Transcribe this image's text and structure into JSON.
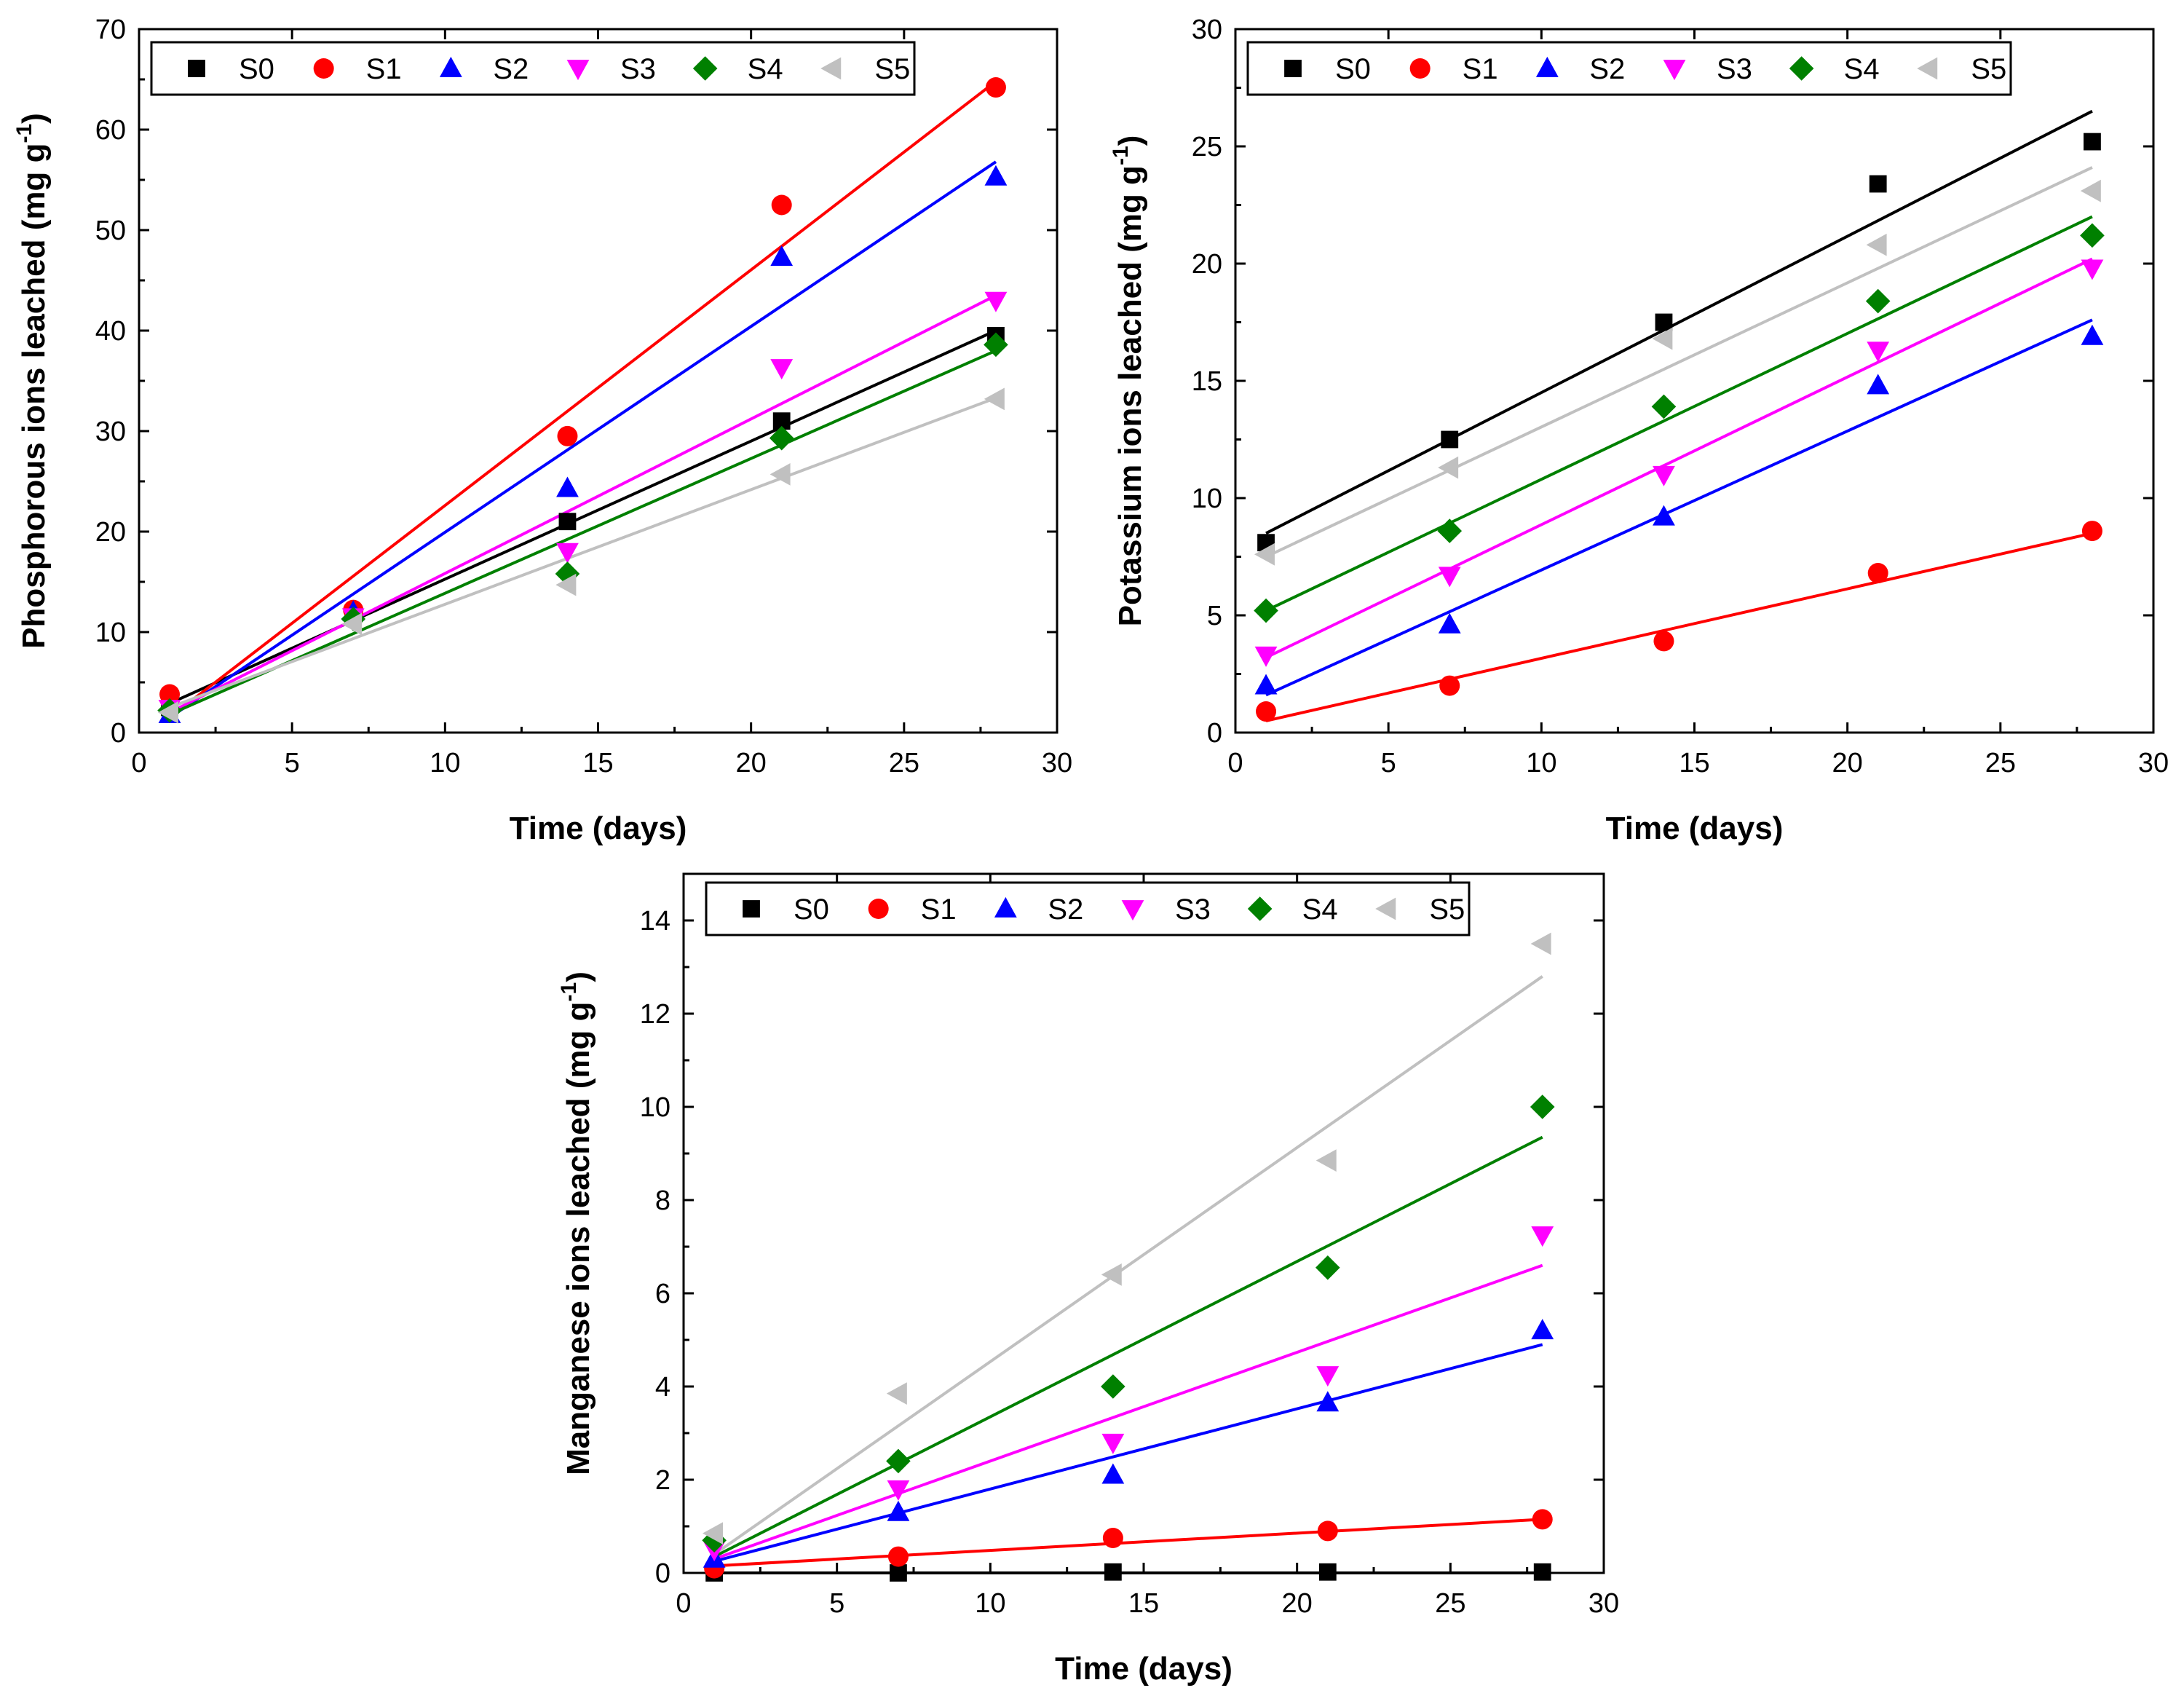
{
  "chart_data": [
    {
      "type": "scatter",
      "title": "",
      "xlabel": "Time (days)",
      "ylabel": "Phosphorous ions leached (mg g",
      "ylabel_sup": "-1",
      "ylabel_end": ")",
      "xlim": [
        0,
        30
      ],
      "ylim": [
        0,
        70
      ],
      "xticks": [
        0,
        5,
        10,
        15,
        20,
        25,
        30
      ],
      "yticks": [
        0,
        10,
        20,
        30,
        40,
        50,
        60,
        70
      ],
      "x": [
        1,
        7,
        14,
        21,
        28
      ],
      "fit": "linear",
      "legend_position": "top",
      "series": [
        {
          "name": "S0",
          "marker": "square",
          "color": "#000000",
          "values": [
            2.5,
            11.8,
            21.0,
            31.0,
            39.5
          ],
          "fit_y": [
            2.9,
            40.0
          ]
        },
        {
          "name": "S1",
          "marker": "circle",
          "color": "#ff0000",
          "values": [
            3.8,
            12.2,
            29.5,
            52.5,
            64.2
          ],
          "fit_y": [
            1.5,
            64.8
          ]
        },
        {
          "name": "S2",
          "marker": "triangle-up",
          "color": "#0000ff",
          "values": [
            1.8,
            12.0,
            24.3,
            47.3,
            55.3
          ],
          "fit_y": [
            1.5,
            56.8
          ]
        },
        {
          "name": "S3",
          "marker": "triangle-down",
          "color": "#ff00ff",
          "values": [
            2.4,
            11.5,
            18.0,
            36.3,
            43.0
          ],
          "fit_y": [
            2.0,
            43.5
          ]
        },
        {
          "name": "S4",
          "marker": "diamond",
          "color": "#008000",
          "values": [
            2.2,
            11.3,
            15.8,
            29.3,
            38.6
          ],
          "fit_y": [
            1.8,
            38.0
          ]
        },
        {
          "name": "S5",
          "marker": "triangle-left",
          "color": "#c0c0c0",
          "values": [
            2.0,
            10.8,
            14.7,
            25.7,
            33.2
          ],
          "fit_y": [
            2.5,
            33.3
          ]
        }
      ]
    },
    {
      "type": "scatter",
      "title": "",
      "xlabel": "Time (days)",
      "ylabel": "Potassium ions leached (mg g",
      "ylabel_sup": "-1",
      "ylabel_end": ")",
      "xlim": [
        0,
        30
      ],
      "ylim": [
        0,
        30
      ],
      "xticks": [
        0,
        5,
        10,
        15,
        20,
        25,
        30
      ],
      "yticks": [
        0,
        5,
        10,
        15,
        20,
        25,
        30
      ],
      "x": [
        1,
        7,
        14,
        21,
        28
      ],
      "fit": "linear",
      "legend_position": "top",
      "series": [
        {
          "name": "S0",
          "marker": "square",
          "color": "#000000",
          "values": [
            8.1,
            12.5,
            17.5,
            23.4,
            25.2
          ],
          "fit_y": [
            8.5,
            26.5
          ]
        },
        {
          "name": "S1",
          "marker": "circle",
          "color": "#ff0000",
          "values": [
            0.9,
            2.0,
            3.9,
            6.8,
            8.6
          ],
          "fit_y": [
            0.5,
            8.5
          ]
        },
        {
          "name": "S2",
          "marker": "triangle-up",
          "color": "#0000ff",
          "values": [
            2.0,
            4.6,
            9.2,
            14.8,
            16.9
          ],
          "fit_y": [
            1.6,
            17.6
          ]
        },
        {
          "name": "S3",
          "marker": "triangle-down",
          "color": "#ff00ff",
          "values": [
            3.3,
            6.7,
            11.0,
            16.3,
            19.8
          ],
          "fit_y": [
            3.2,
            20.2
          ]
        },
        {
          "name": "S4",
          "marker": "diamond",
          "color": "#008000",
          "values": [
            5.2,
            8.6,
            13.9,
            18.4,
            21.2
          ],
          "fit_y": [
            5.2,
            22.0
          ]
        },
        {
          "name": "S5",
          "marker": "triangle-left",
          "color": "#c0c0c0",
          "values": [
            7.6,
            11.3,
            16.8,
            20.8,
            23.1
          ],
          "fit_y": [
            7.5,
            24.1
          ]
        }
      ]
    },
    {
      "type": "scatter",
      "title": "",
      "xlabel": "Time (days)",
      "ylabel": "Manganese ions leached (mg g",
      "ylabel_sup": "-1",
      "ylabel_end": ")",
      "xlim": [
        0,
        30
      ],
      "ylim": [
        0,
        15
      ],
      "xticks": [
        0,
        5,
        10,
        15,
        20,
        25,
        30
      ],
      "yticks": [
        0,
        2,
        4,
        6,
        8,
        10,
        12,
        14
      ],
      "x": [
        1,
        7,
        14,
        21,
        28
      ],
      "fit": "linear",
      "legend_position": "top",
      "series": [
        {
          "name": "S0",
          "marker": "square",
          "color": "#000000",
          "values": [
            0.0,
            0.0,
            0.02,
            0.02,
            0.02
          ],
          "fit_y": [
            0.0,
            0.0
          ]
        },
        {
          "name": "S1",
          "marker": "circle",
          "color": "#ff0000",
          "values": [
            0.1,
            0.35,
            0.75,
            0.9,
            1.15
          ],
          "fit_y": [
            0.15,
            1.15
          ]
        },
        {
          "name": "S2",
          "marker": "triangle-up",
          "color": "#0000ff",
          "values": [
            0.3,
            1.3,
            2.1,
            3.65,
            5.2
          ],
          "fit_y": [
            0.25,
            4.9
          ]
        },
        {
          "name": "S3",
          "marker": "triangle-down",
          "color": "#ff00ff",
          "values": [
            0.5,
            1.8,
            2.8,
            4.25,
            7.25
          ],
          "fit_y": [
            0.3,
            6.6
          ]
        },
        {
          "name": "S4",
          "marker": "diamond",
          "color": "#008000",
          "values": [
            0.7,
            2.4,
            4.0,
            6.55,
            10.0
          ],
          "fit_y": [
            0.35,
            9.35
          ]
        },
        {
          "name": "S5",
          "marker": "triangle-left",
          "color": "#c0c0c0",
          "values": [
            0.85,
            3.85,
            6.4,
            8.85,
            13.5
          ],
          "fit_y": [
            0.4,
            12.8
          ]
        }
      ]
    }
  ]
}
